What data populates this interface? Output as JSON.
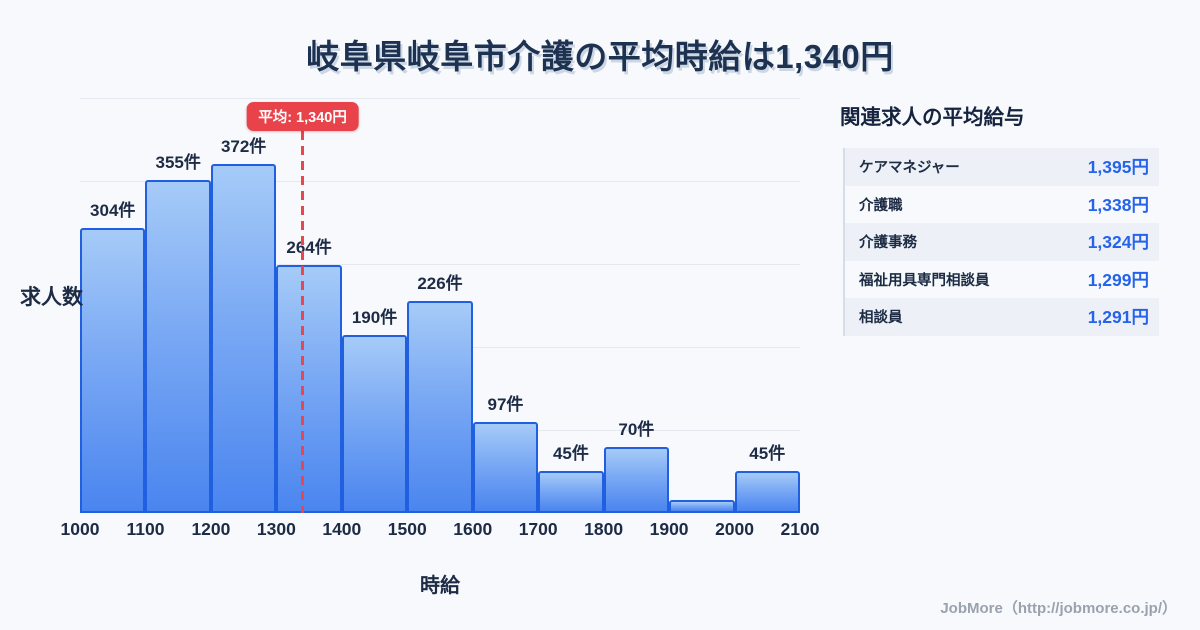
{
  "title": "岐阜県岐阜市介護の平均時給は1,340円",
  "chart_data": {
    "type": "bar",
    "title": "岐阜県岐阜市介護の平均時給は1,340円",
    "xlabel": "時給",
    "ylabel": "求人数",
    "x_ticks": [
      "1000",
      "1100",
      "1200",
      "1300",
      "1400",
      "1500",
      "1600",
      "1700",
      "1800",
      "1900",
      "2000",
      "2100"
    ],
    "categories": [
      "1000-1100",
      "1100-1200",
      "1200-1300",
      "1300-1400",
      "1400-1500",
      "1500-1600",
      "1600-1700",
      "1700-1800",
      "1800-1900",
      "1900-2000",
      "2000-2100"
    ],
    "values": [
      304,
      355,
      372,
      264,
      190,
      226,
      97,
      45,
      70,
      14,
      45
    ],
    "bar_labels": [
      "304件",
      "355件",
      "372件",
      "264件",
      "190件",
      "226件",
      "97件",
      "45件",
      "70件",
      "",
      "45件"
    ],
    "average_line": {
      "value": 1340,
      "label": "平均: 1,340円"
    },
    "xlim": [
      1000,
      2100
    ],
    "ylim": [
      0,
      442
    ],
    "grid": true,
    "legend": "none"
  },
  "side_panel": {
    "heading": "関連求人の平均給与",
    "rows": [
      {
        "label": "ケアマネジャー",
        "value": "1,395円"
      },
      {
        "label": "介護職",
        "value": "1,338円"
      },
      {
        "label": "介護事務",
        "value": "1,324円"
      },
      {
        "label": "福祉用具専門相談員",
        "value": "1,299円"
      },
      {
        "label": "相談員",
        "value": "1,291円"
      }
    ]
  },
  "footer": {
    "credit": "JobMore（http://jobmore.co.jp/）"
  },
  "colors": {
    "background": "#f7f9fc",
    "title_navy": "#1d3150",
    "bar_fill_top": "#a6cbf8",
    "bar_fill_bottom": "#4a85ef",
    "bar_border": "#2060e0",
    "grid_line": "#e5eaf2",
    "average_red": "#e8434b",
    "value_blue": "#2563eb",
    "row_stripe": "#edf1f7",
    "footer_gray": "#9aa2ae"
  }
}
